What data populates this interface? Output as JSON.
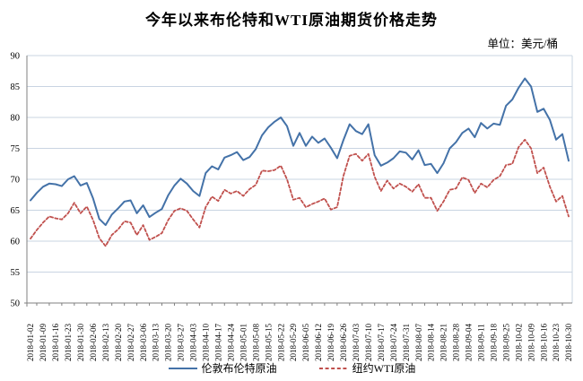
{
  "title": "今年以来布伦特和WTI原油期货价格走势",
  "unit_label": "单位：美元/桶",
  "colors": {
    "background": "#ffffff",
    "text": "#000000",
    "gridline": "#c9d4e2",
    "axis": "#808080",
    "brent_blue": "#4472a8",
    "wti_red": "#c0504d"
  },
  "legend": [
    {
      "key": "brent",
      "label": "伦敦布伦特原油",
      "color": "#4472a8",
      "line_style": "solid"
    },
    {
      "key": "wti",
      "label": "纽约WTI原油",
      "color": "#c0504d",
      "line_style": "dashed"
    }
  ],
  "chart_data": {
    "type": "line",
    "title": "今年以来布伦特和WTI原油期货价格走势",
    "xlabel": "",
    "ylabel": "美元/桶",
    "ylim": [
      50,
      90
    ],
    "y_ticks": [
      50,
      55,
      60,
      65,
      70,
      75,
      80,
      85,
      90
    ],
    "grid": true,
    "legend_position": "bottom",
    "x_tick_every": 2,
    "x_ticklabels": [
      "2018-01-02",
      "2018-01-09",
      "2018-01-16",
      "2018-01-23",
      "2018-01-30",
      "2018-02-06",
      "2018-02-13",
      "2018-02-20",
      "2018-02-27",
      "2018-03-06",
      "2018-03-13",
      "2018-03-20",
      "2018-03-27",
      "2018-04-03",
      "2018-04-10",
      "2018-04-17",
      "2018-04-24",
      "2018-05-01",
      "2018-05-08",
      "2018-05-15",
      "2018-05-22",
      "2018-05-29",
      "2018-06-05",
      "2018-06-12",
      "2018-06-19",
      "2018-06-26",
      "2018-07-03",
      "2018-07-10",
      "2018-07-17",
      "2018-07-24",
      "2018-07-31",
      "2018-08-07",
      "2018-08-14",
      "2018-08-21",
      "2018-08-28",
      "2018-09-04",
      "2018-09-11",
      "2018-09-18",
      "2018-09-25",
      "2018-10-02",
      "2018-10-09",
      "2018-10-16",
      "2018-10-23",
      "2018-10-30"
    ],
    "series": [
      {
        "key": "brent",
        "name": "伦敦布伦特原油",
        "color": "#4472a8",
        "line_style": "solid",
        "values": [
          66.6,
          67.8,
          68.8,
          69.3,
          69.2,
          68.9,
          70.0,
          70.5,
          69.0,
          69.4,
          66.9,
          63.6,
          62.6,
          64.3,
          65.3,
          66.4,
          66.6,
          64.5,
          65.8,
          63.9,
          64.6,
          65.2,
          67.4,
          69.0,
          70.1,
          69.3,
          68.1,
          67.3,
          71.0,
          72.1,
          71.6,
          73.5,
          73.9,
          74.4,
          73.1,
          73.6,
          74.9,
          77.1,
          78.4,
          79.3,
          80.0,
          78.6,
          75.4,
          77.5,
          75.4,
          76.9,
          75.9,
          76.6,
          75.1,
          73.4,
          76.3,
          78.9,
          77.8,
          77.3,
          78.9,
          73.9,
          72.2,
          72.7,
          73.4,
          74.5,
          74.3,
          73.2,
          74.7,
          72.3,
          72.5,
          71.0,
          72.6,
          75.0,
          76.0,
          77.5,
          78.2,
          76.8,
          79.1,
          78.2,
          79.0,
          78.8,
          81.9,
          82.9,
          84.8,
          86.3,
          85.0,
          80.9,
          81.4,
          79.6,
          76.4,
          77.3,
          73.0
        ]
      },
      {
        "key": "wti",
        "name": "纽约WTI原油",
        "color": "#c0504d",
        "line_style": "dashed",
        "values": [
          60.4,
          61.8,
          63.0,
          64.0,
          63.7,
          63.5,
          64.5,
          66.2,
          64.5,
          65.6,
          63.4,
          60.5,
          59.2,
          61.0,
          61.9,
          63.2,
          63.0,
          61.0,
          62.6,
          60.2,
          60.7,
          61.3,
          63.4,
          64.9,
          65.3,
          64.9,
          63.5,
          62.2,
          65.5,
          67.2,
          66.5,
          68.3,
          67.7,
          68.1,
          67.3,
          68.4,
          69.1,
          71.4,
          71.3,
          71.5,
          72.2,
          70.0,
          66.7,
          67.0,
          65.5,
          66.0,
          66.4,
          66.9,
          65.1,
          65.5,
          70.5,
          73.8,
          74.1,
          73.0,
          74.1,
          70.4,
          68.1,
          69.8,
          68.5,
          69.3,
          68.8,
          68.0,
          69.2,
          67.0,
          67.0,
          64.9,
          66.4,
          68.3,
          68.5,
          70.3,
          69.9,
          67.8,
          69.3,
          68.7,
          69.9,
          70.5,
          72.3,
          72.5,
          75.2,
          76.4,
          75.0,
          71.0,
          71.9,
          68.8,
          66.4,
          67.3,
          64.0
        ]
      }
    ]
  }
}
